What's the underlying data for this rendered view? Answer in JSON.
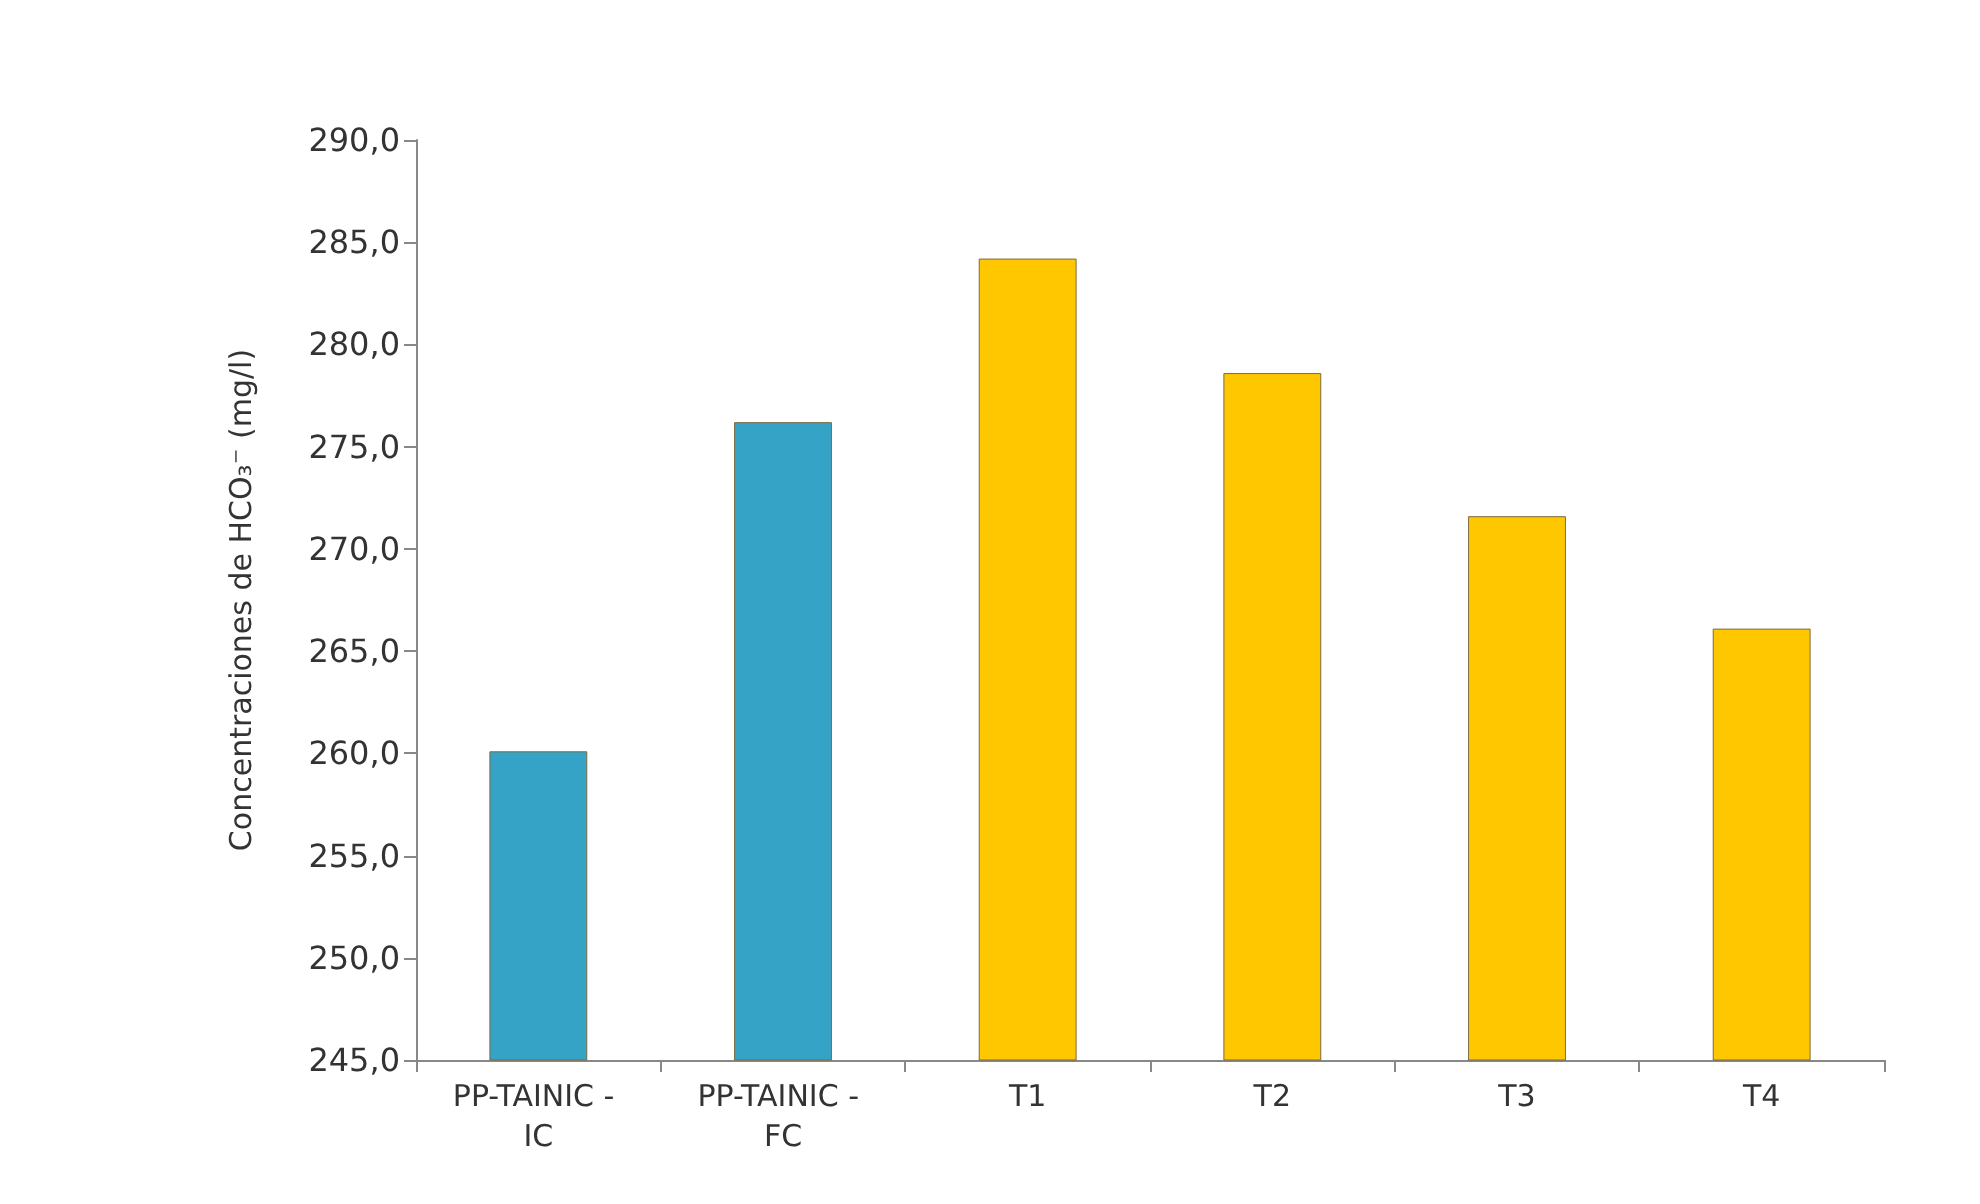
{
  "chart_data": {
    "type": "bar",
    "ylabel": "Concentraciones de HCO₃⁻ (mg/l)",
    "categories": [
      "PP-TAINIC - IC",
      "PP-TAINIC - FC",
      "T1",
      "T2",
      "T3",
      "T4"
    ],
    "values": [
      260.1,
      276.2,
      284.2,
      278.6,
      271.6,
      266.1
    ],
    "colors": [
      "#35a3c6",
      "#35a3c6",
      "#ffc700",
      "#ffc700",
      "#ffc700",
      "#ffc700"
    ],
    "ylim": [
      245,
      290
    ],
    "yticks": [
      {
        "value": 245,
        "label": "245,0"
      },
      {
        "value": 250,
        "label": "250,0"
      },
      {
        "value": 255,
        "label": "255,0"
      },
      {
        "value": 260,
        "label": "260,0"
      },
      {
        "value": 265,
        "label": "265,0"
      },
      {
        "value": 270,
        "label": "270,0"
      },
      {
        "value": 275,
        "label": "275,0"
      },
      {
        "value": 280,
        "label": "280,0"
      },
      {
        "value": 285,
        "label": "285,0"
      },
      {
        "value": 290,
        "label": "290,0"
      }
    ],
    "grid": false
  }
}
